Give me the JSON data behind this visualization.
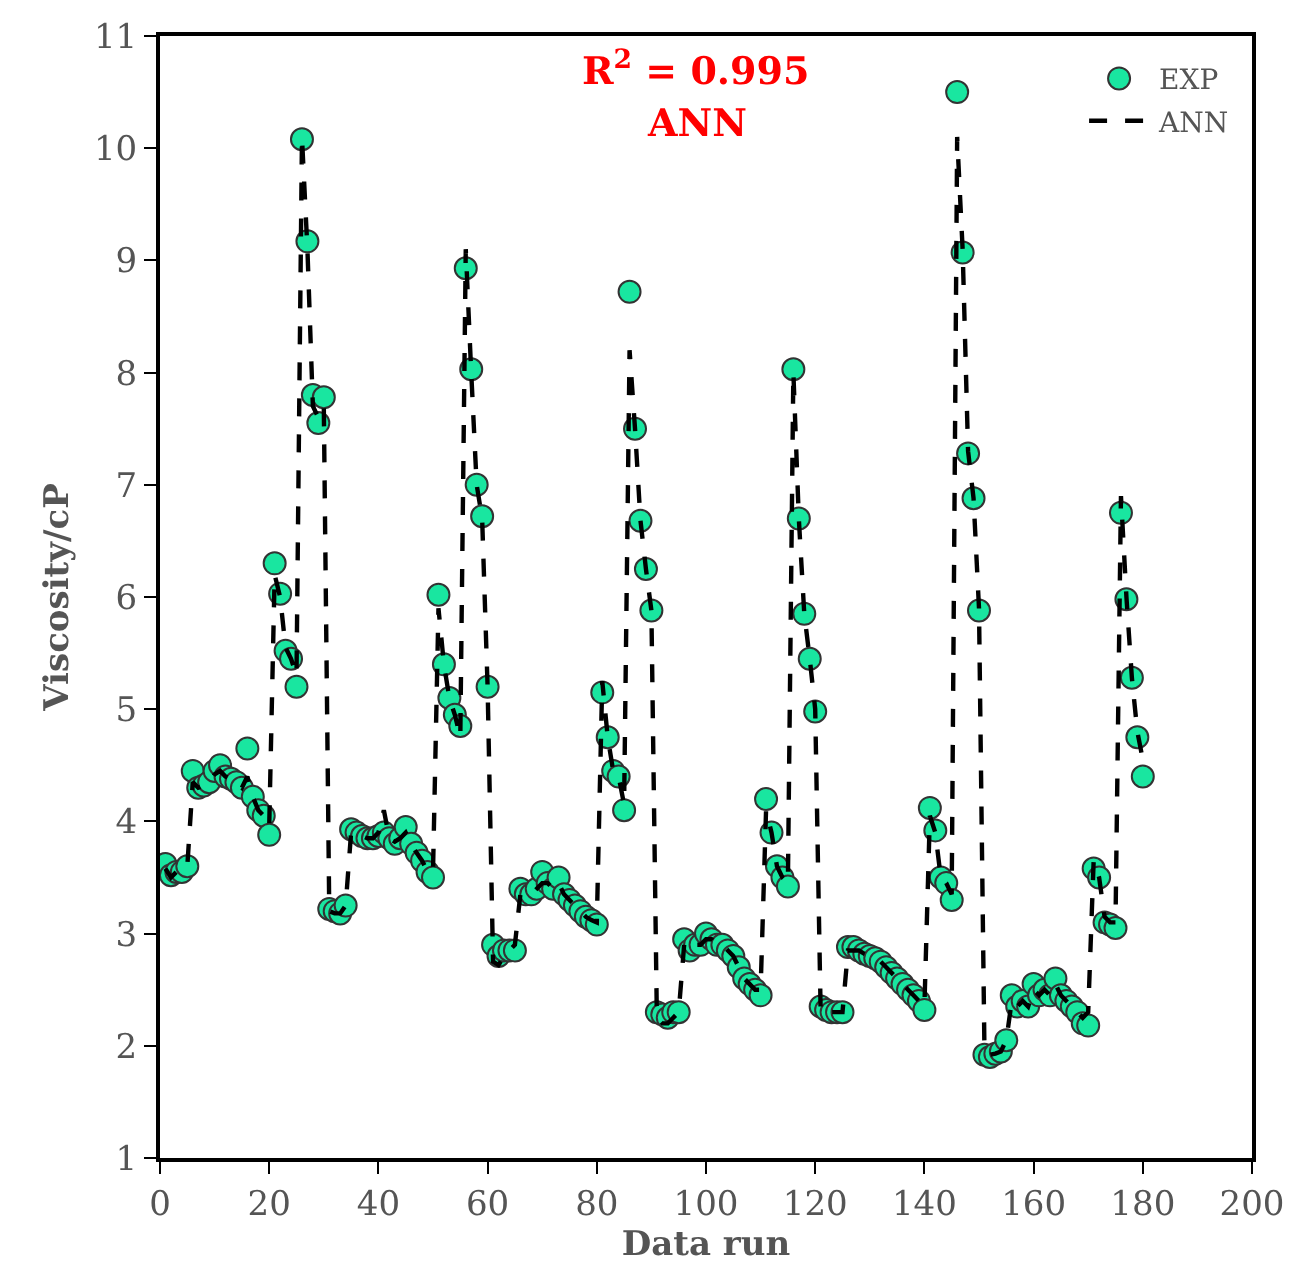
{
  "chart_data": {
    "type": "scatter",
    "xlabel": "Data run",
    "ylabel": "Viscosity/cP",
    "x": [
      1,
      2,
      3,
      4,
      5,
      6,
      7,
      8,
      9,
      10,
      11,
      12,
      13,
      14,
      15,
      16,
      17,
      18,
      19,
      20,
      21,
      22,
      23,
      24,
      25,
      26,
      27,
      28,
      29,
      30,
      31,
      32,
      33,
      34,
      35,
      36,
      37,
      38,
      39,
      40,
      41,
      42,
      43,
      44,
      45,
      46,
      47,
      48,
      49,
      50,
      51,
      52,
      53,
      54,
      55,
      56,
      57,
      58,
      59,
      60,
      61,
      62,
      63,
      64,
      65,
      66,
      67,
      68,
      69,
      70,
      71,
      72,
      73,
      74,
      75,
      76,
      77,
      78,
      79,
      80,
      81,
      82,
      83,
      84,
      85,
      86,
      87,
      88,
      89,
      90,
      91,
      92,
      93,
      94,
      95,
      96,
      97,
      98,
      99,
      100,
      101,
      102,
      103,
      104,
      105,
      106,
      107,
      108,
      109,
      110,
      111,
      112,
      113,
      114,
      115,
      116,
      117,
      118,
      119,
      120,
      121,
      122,
      123,
      124,
      125,
      126,
      127,
      128,
      129,
      130,
      131,
      132,
      133,
      134,
      135,
      136,
      137,
      138,
      139,
      140,
      141,
      142,
      143,
      144,
      145,
      146,
      147,
      148,
      149,
      150,
      151,
      152,
      153,
      154,
      155,
      156,
      157,
      158,
      159,
      160,
      161,
      162,
      163,
      164,
      165,
      166,
      167,
      168,
      169,
      170,
      171,
      172,
      173,
      174,
      175,
      176,
      177,
      178,
      179,
      180
    ],
    "series": [
      {
        "name": "EXP",
        "marker": "circle",
        "color": "#19e6a0",
        "values": [
          3.62,
          3.52,
          3.55,
          3.55,
          3.6,
          4.45,
          4.3,
          4.32,
          4.35,
          4.45,
          4.5,
          4.4,
          4.38,
          4.35,
          4.3,
          4.65,
          4.22,
          4.1,
          4.05,
          3.88,
          6.3,
          6.03,
          5.52,
          5.45,
          5.2,
          10.08,
          9.17,
          7.8,
          7.55,
          7.78,
          3.22,
          3.2,
          3.18,
          3.25,
          3.93,
          3.9,
          3.87,
          3.85,
          3.85,
          3.87,
          3.9,
          3.85,
          3.8,
          3.85,
          3.95,
          3.8,
          3.72,
          3.65,
          3.55,
          3.5,
          6.02,
          5.4,
          5.1,
          4.95,
          4.85,
          8.93,
          8.03,
          7.0,
          6.72,
          5.2,
          2.9,
          2.8,
          2.85,
          2.85,
          2.85,
          3.4,
          3.35,
          3.35,
          3.4,
          3.55,
          3.45,
          3.4,
          3.5,
          3.35,
          3.3,
          3.25,
          3.2,
          3.15,
          3.12,
          3.08,
          5.15,
          4.75,
          4.45,
          4.4,
          4.1,
          8.72,
          7.5,
          6.68,
          6.25,
          5.88,
          2.3,
          2.28,
          2.25,
          2.3,
          2.3,
          2.95,
          2.85,
          2.9,
          2.9,
          3.0,
          2.95,
          2.9,
          2.9,
          2.85,
          2.8,
          2.7,
          2.6,
          2.55,
          2.5,
          2.45,
          4.2,
          3.9,
          3.6,
          3.5,
          3.42,
          8.03,
          6.7,
          5.85,
          5.45,
          4.98,
          2.35,
          2.32,
          2.3,
          2.3,
          2.3,
          2.88,
          2.88,
          2.85,
          2.82,
          2.8,
          2.78,
          2.75,
          2.7,
          2.65,
          2.6,
          2.55,
          2.5,
          2.45,
          2.4,
          2.32,
          4.12,
          3.92,
          3.5,
          3.45,
          3.3,
          10.5,
          9.07,
          7.28,
          6.88,
          5.88,
          1.92,
          1.9,
          1.93,
          1.95,
          2.05,
          2.45,
          2.35,
          2.4,
          2.35,
          2.55,
          2.45,
          2.5,
          2.45,
          2.6,
          2.45,
          2.4,
          2.35,
          2.3,
          2.2,
          2.18,
          3.58,
          3.5,
          3.1,
          3.08,
          3.05,
          6.75,
          5.98,
          5.28,
          4.75,
          4.4
        ]
      },
      {
        "name": "ANN",
        "type": "line",
        "line_style": "dashed",
        "color": "#000000",
        "values": [
          3.58,
          3.5,
          3.55,
          3.55,
          3.6,
          4.35,
          4.3,
          4.32,
          4.35,
          4.42,
          4.45,
          4.4,
          4.38,
          4.35,
          4.3,
          4.4,
          4.22,
          4.1,
          4.05,
          3.95,
          6.2,
          6.0,
          5.55,
          5.45,
          5.3,
          10.1,
          9.1,
          7.7,
          7.6,
          7.7,
          3.2,
          3.18,
          3.18,
          3.25,
          3.9,
          3.9,
          3.87,
          3.85,
          3.85,
          3.9,
          4.1,
          3.85,
          3.82,
          3.85,
          3.9,
          3.8,
          3.72,
          3.65,
          3.55,
          3.55,
          5.9,
          5.4,
          5.1,
          4.95,
          4.75,
          9.1,
          8.0,
          7.0,
          6.7,
          5.2,
          2.75,
          2.72,
          2.8,
          2.85,
          2.9,
          3.35,
          3.35,
          3.35,
          3.4,
          3.45,
          3.45,
          3.4,
          3.45,
          3.35,
          3.3,
          3.25,
          3.2,
          3.15,
          3.12,
          3.1,
          5.25,
          4.75,
          4.45,
          4.4,
          4.15,
          8.2,
          7.5,
          6.68,
          6.25,
          5.88,
          2.25,
          2.2,
          2.2,
          2.25,
          2.3,
          2.9,
          2.85,
          2.9,
          2.9,
          2.95,
          2.95,
          2.9,
          2.9,
          2.85,
          2.8,
          2.7,
          2.6,
          2.55,
          2.5,
          2.5,
          4.1,
          3.9,
          3.6,
          3.5,
          3.45,
          8.0,
          6.7,
          5.85,
          5.45,
          5.0,
          2.3,
          2.32,
          2.3,
          2.3,
          2.3,
          2.85,
          2.85,
          2.85,
          2.82,
          2.8,
          2.78,
          2.75,
          2.7,
          2.65,
          2.6,
          2.55,
          2.5,
          2.45,
          2.4,
          2.35,
          4.05,
          3.9,
          3.5,
          3.45,
          3.35,
          10.1,
          9.1,
          7.3,
          6.88,
          5.9,
          1.95,
          1.92,
          1.93,
          1.95,
          2.05,
          2.4,
          2.35,
          2.4,
          2.35,
          2.5,
          2.45,
          2.5,
          2.45,
          2.55,
          2.45,
          2.4,
          2.35,
          2.3,
          2.25,
          2.3,
          3.65,
          3.5,
          3.15,
          3.1,
          3.1,
          6.9,
          6.0,
          5.28,
          4.8,
          4.55
        ]
      }
    ],
    "xlim": [
      0,
      200
    ],
    "xticks": [
      0,
      20,
      40,
      60,
      80,
      100,
      120,
      140,
      160,
      180,
      200
    ],
    "ylim": [
      1,
      11
    ],
    "yticks": [
      1,
      2,
      3,
      4,
      5,
      6,
      7,
      8,
      9,
      10,
      11
    ],
    "annotations": [
      "R$^{2}$ = 0.995",
      "ANN"
    ],
    "grid": false,
    "legend": "top right"
  }
}
